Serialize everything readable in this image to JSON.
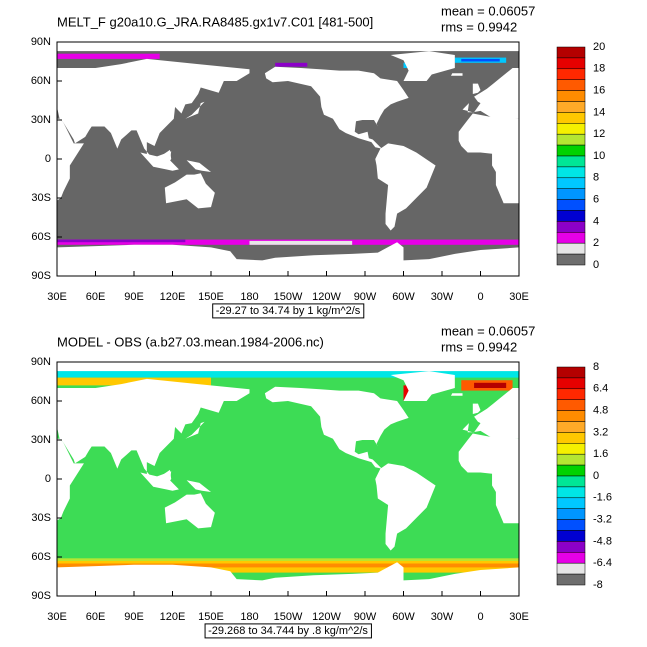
{
  "panels": [
    {
      "title": "MELT_F g20a10.G_JRA.RA8485.gx1v7.C01 [481-500]",
      "mean": "mean = 0.06057",
      "rms": "rms = 0.9942",
      "info": "-29.27 to 34.74 by 1 kg/m^2/s",
      "background_color": "#666666",
      "colorbar_labels": [
        "20",
        "18",
        "16",
        "14",
        "12",
        "10",
        "8",
        "6",
        "4",
        "2",
        "0"
      ]
    },
    {
      "title": "MODEL - OBS (a.b27.03.mean.1984-2006.nc)",
      "mean": "mean = 0.06057",
      "rms": "rms = 0.9942",
      "info": "-29.268 to 34.744 by .8 kg/m^2/s",
      "background_color": "#3ddc55",
      "colorbar_labels": [
        "8",
        "6.4",
        "4.8",
        "3.2",
        "1.6",
        "0",
        "-1.6",
        "-3.2",
        "-4.8",
        "-6.4",
        "-8"
      ]
    }
  ],
  "lat_labels": [
    "90N",
    "60N",
    "30N",
    "0",
    "30S",
    "60S",
    "90S"
  ],
  "lon_labels": [
    "30E",
    "60E",
    "90E",
    "120E",
    "150E",
    "180",
    "150W",
    "120W",
    "90W",
    "60W",
    "30W",
    "0",
    "30E"
  ],
  "colorbar_colors": [
    "#b40000",
    "#e60000",
    "#ff2800",
    "#ff5a00",
    "#ff8c00",
    "#ffaa28",
    "#ffc800",
    "#f5f000",
    "#b4e632",
    "#00d200",
    "#00e696",
    "#00e6e6",
    "#00c8ff",
    "#0096ff",
    "#0050ff",
    "#0000d2",
    "#8c00c8",
    "#e600e6",
    "#e6e6e6",
    "#6e6e6e"
  ]
}
